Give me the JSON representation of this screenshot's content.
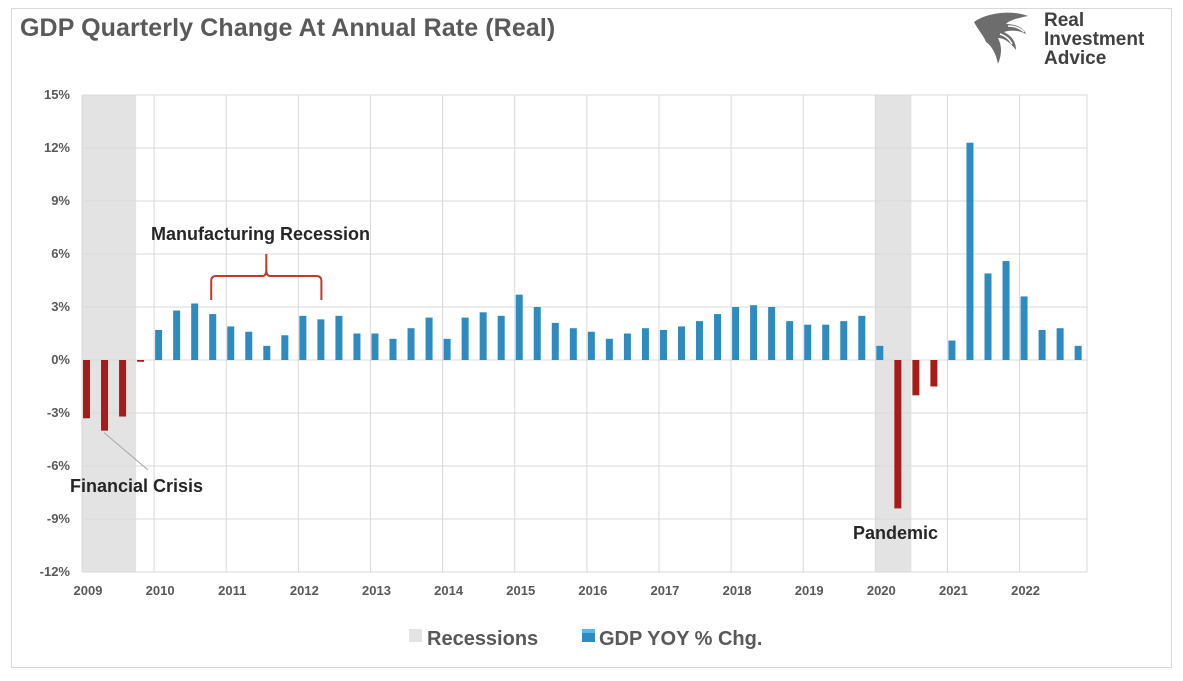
{
  "header": {
    "title": "GDP Quarterly Change At Annual Rate (Real)",
    "brand_line1": "Real",
    "brand_line2": "Investment",
    "brand_line3": "Advice"
  },
  "colors": {
    "positive": "#2e8bc0",
    "negative": "#a61c1c",
    "recession": "#e3e3e3",
    "grid": "#d9d9d9",
    "annotation_brace": "#c0392b"
  },
  "chart_data": {
    "type": "bar",
    "title": "GDP Quarterly Change At Annual Rate (Real)",
    "ylim": [
      -12,
      15
    ],
    "yticks": [
      15,
      12,
      9,
      6,
      3,
      0,
      -3,
      -6,
      -9,
      -12
    ],
    "ytick_labels": [
      "15%",
      "12%",
      "9%",
      "6%",
      "3%",
      "0%",
      "-3%",
      "-6%",
      "-9%",
      "-12%"
    ],
    "xtick_labels": [
      "2009",
      "2010",
      "2011",
      "2012",
      "2013",
      "2014",
      "2015",
      "2016",
      "2017",
      "2018",
      "2019",
      "2020",
      "2021",
      "2022"
    ],
    "grid": true,
    "legend_position": "bottom",
    "series": [
      {
        "name": "GDP YOY % Chg.",
        "values": [
          -3.3,
          -4.0,
          -3.2,
          -0.1,
          1.7,
          2.8,
          3.2,
          2.6,
          1.9,
          1.6,
          0.8,
          1.4,
          2.5,
          2.3,
          2.5,
          1.5,
          1.5,
          1.2,
          1.8,
          2.4,
          1.2,
          2.4,
          2.7,
          2.5,
          3.7,
          3.0,
          2.1,
          1.8,
          1.6,
          1.2,
          1.5,
          1.8,
          1.7,
          1.9,
          2.2,
          2.6,
          3.0,
          3.1,
          3.0,
          2.2,
          2.0,
          2.0,
          2.2,
          2.5,
          0.8,
          -8.4,
          -2.0,
          -1.5,
          1.1,
          12.3,
          4.9,
          5.6,
          3.6,
          1.7,
          1.8,
          0.8
        ]
      },
      {
        "name": "Recessions",
        "periods": [
          [
            0,
            2
          ],
          [
            44,
            45
          ]
        ]
      }
    ],
    "annotations": [
      {
        "text": "Manufacturing Recession",
        "from_quarter": 7,
        "to_quarter": 13
      },
      {
        "text": "Financial Crisis",
        "quarter": 1
      },
      {
        "text": "Pandemic",
        "quarter": 45
      }
    ]
  },
  "legend": {
    "recessions_label": "Recessions",
    "gdp_label": "GDP YOY % Chg."
  }
}
